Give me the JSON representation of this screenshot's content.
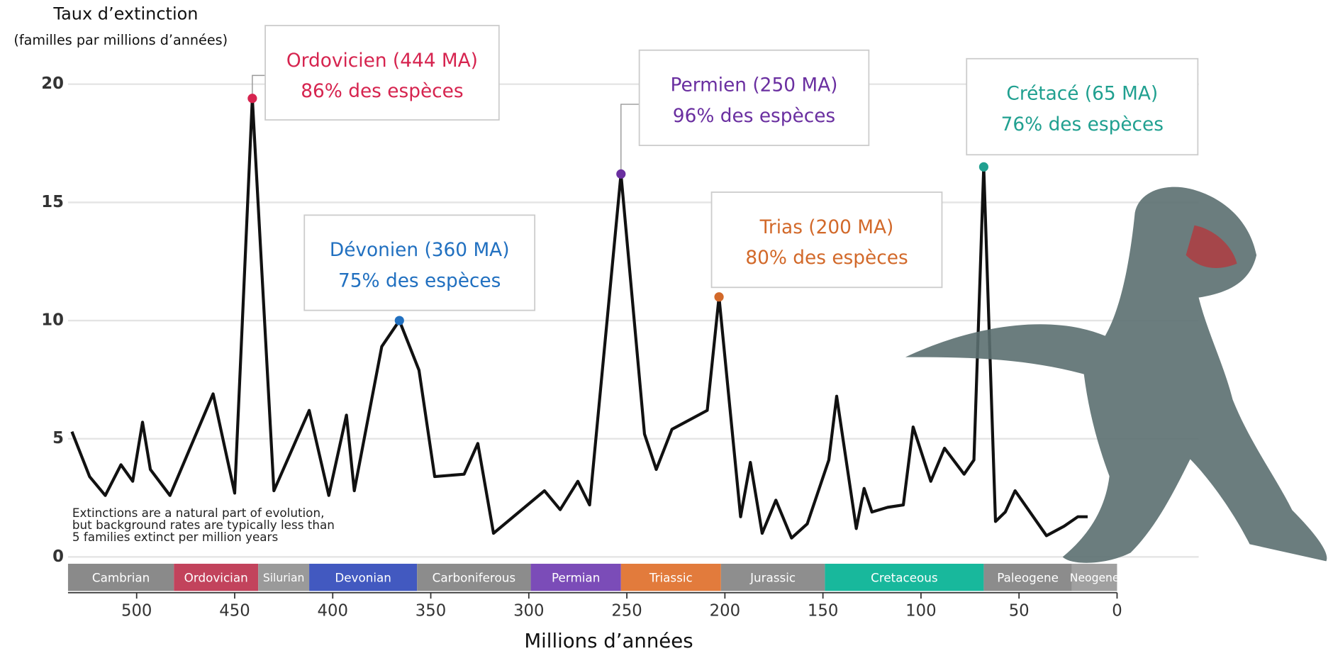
{
  "chart_data": {
    "type": "line",
    "ylabel": [
      "Taux d’extinction",
      "(familles par millions d’années)"
    ],
    "xlabel": "Millions d’années",
    "note": [
      "Extinctions are a natural part of evolution,",
      "but background rates are typically less than",
      "5 families extinct per million years"
    ],
    "x": [
      533,
      524,
      516,
      508,
      502,
      497,
      493,
      483,
      461,
      450,
      441,
      430,
      412,
      402,
      393,
      389,
      375,
      366,
      356,
      348,
      333,
      326,
      318,
      292,
      284,
      275,
      269,
      253,
      241,
      235,
      227,
      209,
      203,
      192,
      187,
      181,
      174,
      166,
      158,
      147,
      143,
      133,
      129,
      125,
      117,
      109,
      104,
      95,
      88,
      78,
      73,
      68,
      62,
      57,
      52,
      36,
      27,
      20,
      15
    ],
    "values": [
      5.3,
      3.4,
      2.6,
      3.9,
      3.2,
      5.7,
      3.7,
      2.6,
      6.9,
      2.7,
      19.4,
      2.8,
      6.2,
      2.6,
      6.0,
      2.8,
      8.9,
      10.0,
      7.9,
      3.4,
      3.5,
      4.8,
      1.0,
      2.8,
      2.0,
      3.2,
      2.2,
      16.2,
      5.2,
      3.7,
      5.4,
      6.2,
      11.0,
      1.7,
      4.0,
      1.0,
      2.4,
      0.8,
      1.4,
      4.1,
      6.8,
      1.2,
      2.9,
      1.9,
      2.1,
      2.2,
      5.5,
      3.2,
      4.6,
      3.5,
      4.1,
      16.5,
      1.5,
      1.9,
      2.8,
      0.9,
      1.3,
      1.7,
      1.7
    ],
    "color": "#111111",
    "xlim": [
      535,
      0
    ],
    "ylim": [
      0,
      20
    ],
    "xticks": [
      500,
      450,
      400,
      350,
      300,
      250,
      200,
      150,
      100,
      50,
      0
    ],
    "yticks": [
      0,
      5,
      10,
      15,
      20
    ],
    "grid": true,
    "periods": {
      "names": [
        "Cambrian",
        "Ordovician",
        "Silurian",
        "Devonian",
        "Carboniferous",
        "Permian",
        "Triassic",
        "Jurassic",
        "Cretaceous",
        "Paleogene",
        "Neogene"
      ],
      "bounds": [
        535,
        481,
        438,
        412,
        357,
        299,
        253,
        202,
        149,
        68,
        23,
        0
      ],
      "colors": [
        "#8a8a8a",
        "#c2435c",
        "#9a9a9a",
        "#4259c0",
        "#8c8c8c",
        "#7b4cb8",
        "#e27b3c",
        "#8e8e8e",
        "#18b89c",
        "#8c8c8c",
        "#a0a0a0"
      ]
    },
    "annotations": [
      {
        "text": [
          "Ordovicien (444 MA)",
          "86% des espèces"
        ],
        "x": 441,
        "y": 19.4,
        "color": "#d6244f"
      },
      {
        "text": [
          "Dévonien (360 MA)",
          "75% des espèces"
        ],
        "x": 366,
        "y": 10.0,
        "color": "#2170c0"
      },
      {
        "text": [
          "Permien (250 MA)",
          "96% des espèces"
        ],
        "x": 253,
        "y": 16.2,
        "color": "#6a2fa0"
      },
      {
        "text": [
          "Trias (200 MA)",
          "80% des espèces"
        ],
        "x": 203,
        "y": 11.0,
        "color": "#d2692a"
      },
      {
        "text": [
          "Crétacé (65 MA)",
          "76% des espèces"
        ],
        "x": 68,
        "y": 16.5,
        "color": "#20a090"
      }
    ]
  }
}
